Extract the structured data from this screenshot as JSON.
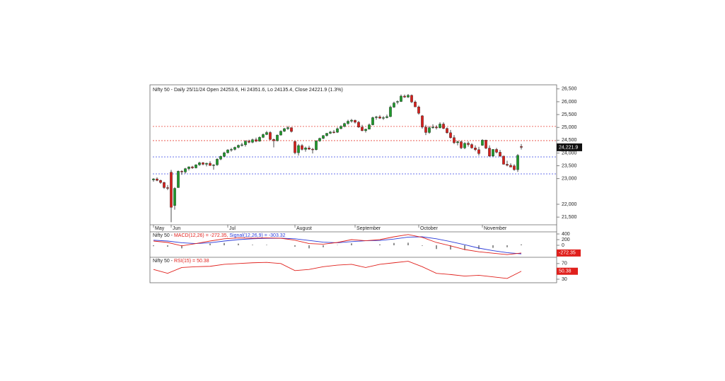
{
  "chart_data": {
    "type": "candlestick",
    "title": "Nifty 50 - Daily 25/11/24 Open 24253.6, Hi 24351.6, Lo 24135.4, Close 24221.9 (1.3%)",
    "up_color": "#1f9a2c",
    "down_color": "#d8201c",
    "ylim": [
      21200,
      26660
    ],
    "yticks": [
      {
        "value": 26500,
        "label": "26,500"
      },
      {
        "value": 26000,
        "label": "26,000"
      },
      {
        "value": 25500,
        "label": "25,500"
      },
      {
        "value": 25000,
        "label": "25,000"
      },
      {
        "value": 24500,
        "label": "24,500"
      },
      {
        "value": 24000,
        "label": "24,000"
      },
      {
        "value": 23500,
        "label": "23,500"
      },
      {
        "value": 23000,
        "label": "23,000"
      },
      {
        "value": 22000,
        "label": "22,000"
      },
      {
        "value": 21500,
        "label": "21,500"
      }
    ],
    "xticks": [
      {
        "value": 0,
        "label": "May"
      },
      {
        "value": 5,
        "label": "Jun"
      },
      {
        "value": 21,
        "label": "Jul"
      },
      {
        "value": 40,
        "label": "August"
      },
      {
        "value": 57,
        "label": "September"
      },
      {
        "value": 75,
        "label": "October"
      },
      {
        "value": 93,
        "label": "November"
      }
    ],
    "last_label": "24,221.9",
    "levels": [
      {
        "value": 25036,
        "color": "#e8433a"
      },
      {
        "value": 24483,
        "color": "#e8433a"
      },
      {
        "value": 23848,
        "color": "#3a46e8"
      },
      {
        "value": 23185,
        "color": "#3a46e8"
      }
    ],
    "candles": [
      [
        22950,
        23020,
        22880,
        22990
      ],
      [
        22990,
        23050,
        22900,
        22930
      ],
      [
        22930,
        22960,
        22800,
        22850
      ],
      [
        22850,
        22880,
        22600,
        22650
      ],
      [
        22650,
        22750,
        22550,
        22620
      ],
      [
        23250,
        23340,
        21300,
        21880
      ],
      [
        21950,
        22670,
        21790,
        22620
      ],
      [
        22650,
        23320,
        22640,
        23290
      ],
      [
        23290,
        23330,
        23150,
        23260
      ],
      [
        23260,
        23420,
        23200,
        23390
      ],
      [
        23390,
        23480,
        23320,
        23460
      ],
      [
        23460,
        23500,
        23380,
        23420
      ],
      [
        23420,
        23560,
        23400,
        23540
      ],
      [
        23540,
        23660,
        23500,
        23620
      ],
      [
        23620,
        23650,
        23520,
        23560
      ],
      [
        23560,
        23620,
        23480,
        23600
      ],
      [
        23600,
        23680,
        23540,
        23510
      ],
      [
        23510,
        23560,
        23350,
        23540
      ],
      [
        23540,
        23800,
        23500,
        23760
      ],
      [
        23760,
        23900,
        23720,
        23870
      ],
      [
        23870,
        24050,
        23840,
        24010
      ],
      [
        24010,
        24150,
        23980,
        24120
      ],
      [
        24120,
        24200,
        24050,
        24140
      ],
      [
        24140,
        24250,
        24100,
        24220
      ],
      [
        24220,
        24330,
        24180,
        24300
      ],
      [
        24300,
        24400,
        24250,
        24320
      ],
      [
        24320,
        24500,
        24250,
        24460
      ],
      [
        24460,
        24520,
        24380,
        24420
      ],
      [
        24420,
        24560,
        24380,
        24520
      ],
      [
        24520,
        24600,
        24420,
        24460
      ],
      [
        24460,
        24650,
        24440,
        24610
      ],
      [
        24610,
        24760,
        24580,
        24720
      ],
      [
        24720,
        24860,
        24700,
        24800
      ],
      [
        24800,
        24850,
        24500,
        24530
      ],
      [
        24530,
        24560,
        24220,
        24480
      ],
      [
        24480,
        24720,
        24450,
        24700
      ],
      [
        24700,
        24880,
        24680,
        24850
      ],
      [
        24850,
        24980,
        24820,
        24950
      ],
      [
        24950,
        25050,
        24900,
        24990
      ],
      [
        24990,
        25000,
        24800,
        24840
      ],
      [
        24450,
        24480,
        23950,
        24010
      ],
      [
        24010,
        24350,
        23900,
        24290
      ],
      [
        24290,
        24350,
        24100,
        24140
      ],
      [
        24140,
        24250,
        24050,
        24200
      ],
      [
        24200,
        24280,
        24120,
        24150
      ],
      [
        24150,
        24200,
        23980,
        24130
      ],
      [
        24130,
        24500,
        24100,
        24470
      ],
      [
        24470,
        24600,
        24440,
        24570
      ],
      [
        24570,
        24700,
        24540,
        24680
      ],
      [
        24680,
        24780,
        24640,
        24770
      ],
      [
        24770,
        24860,
        24740,
        24820
      ],
      [
        24820,
        24900,
        24760,
        24810
      ],
      [
        24810,
        25000,
        24780,
        24950
      ],
      [
        24950,
        25080,
        24930,
        25040
      ],
      [
        25040,
        25180,
        25000,
        25150
      ],
      [
        25150,
        25300,
        25100,
        25240
      ],
      [
        25240,
        25330,
        25180,
        25280
      ],
      [
        25280,
        25300,
        25150,
        25200
      ],
      [
        25200,
        25250,
        24980,
        25010
      ],
      [
        25010,
        25100,
        24850,
        24870
      ],
      [
        24870,
        24950,
        24800,
        24930
      ],
      [
        24930,
        25150,
        24920,
        25100
      ],
      [
        25100,
        25420,
        25080,
        25380
      ],
      [
        25380,
        25450,
        25300,
        25410
      ],
      [
        25410,
        25480,
        25330,
        25360
      ],
      [
        25360,
        25440,
        25290,
        25380
      ],
      [
        25380,
        25500,
        25350,
        25420
      ],
      [
        25420,
        25850,
        25400,
        25790
      ],
      [
        25790,
        26000,
        25760,
        25950
      ],
      [
        26000,
        26050,
        25900,
        26010
      ],
      [
        26010,
        26280,
        25990,
        26220
      ],
      [
        26220,
        26280,
        26150,
        26180
      ],
      [
        26180,
        26300,
        26150,
        26250
      ],
      [
        26250,
        26280,
        25950,
        25990
      ],
      [
        25990,
        26050,
        25800,
        25800
      ],
      [
        25800,
        25850,
        25500,
        25550
      ],
      [
        25450,
        25480,
        24950,
        25010
      ],
      [
        25010,
        25100,
        24700,
        24800
      ],
      [
        24800,
        25050,
        24750,
        24990
      ],
      [
        24990,
        25120,
        24950,
        25010
      ],
      [
        25010,
        25080,
        24920,
        24980
      ],
      [
        24980,
        25200,
        24960,
        25130
      ],
      [
        25130,
        25200,
        24930,
        24960
      ],
      [
        24960,
        25000,
        24750,
        24790
      ],
      [
        24790,
        24900,
        24560,
        24600
      ],
      [
        24600,
        24700,
        24350,
        24400
      ],
      [
        24400,
        24480,
        24300,
        24440
      ],
      [
        24440,
        24480,
        24150,
        24200
      ],
      [
        24200,
        24420,
        24150,
        24380
      ],
      [
        24380,
        24450,
        24250,
        24330
      ],
      [
        24330,
        24380,
        24170,
        24200
      ],
      [
        24200,
        24300,
        24070,
        24130
      ],
      [
        24130,
        24240,
        23900,
        23980
      ],
      [
        24300,
        24540,
        24280,
        24500
      ],
      [
        24500,
        24520,
        24150,
        24190
      ],
      [
        24190,
        24300,
        23850,
        23880
      ],
      [
        23880,
        24150,
        23850,
        24140
      ],
      [
        24140,
        24200,
        23990,
        24030
      ],
      [
        24030,
        24120,
        23850,
        23880
      ],
      [
        23880,
        23890,
        23550,
        23560
      ],
      [
        23560,
        23700,
        23480,
        23520
      ],
      [
        23520,
        23600,
        23450,
        23450
      ],
      [
        23500,
        23560,
        23310,
        23350
      ],
      [
        23350,
        23960,
        23260,
        23907
      ],
      [
        24253.6,
        24351.6,
        24135.4,
        24221.9
      ]
    ],
    "macd": {
      "prefix": "Nifty 50 -",
      "macd_name": "MACD(12,26) = -272.35,",
      "signal_name": "Signal(12,26,9) = -303.32",
      "macd_color": "#e0201c",
      "signal_color": "#2a3ad8",
      "last_label": "-272.35",
      "ylim": [
        -425,
        475
      ],
      "yticks": [
        400,
        200,
        0
      ],
      "x": [
        0,
        4,
        8,
        12,
        16,
        20,
        24,
        28,
        32,
        36,
        40,
        44,
        48,
        52,
        56,
        60,
        64,
        68,
        72,
        76,
        80,
        84,
        88,
        92,
        96,
        100,
        104
      ],
      "macd": [
        150,
        100,
        -20,
        60,
        150,
        230,
        260,
        250,
        260,
        250,
        180,
        60,
        40,
        100,
        200,
        160,
        200,
        300,
        380,
        280,
        100,
        -20,
        -150,
        -230,
        -280,
        -330,
        -272.35
      ],
      "signal": [
        180,
        150,
        90,
        60,
        90,
        150,
        200,
        230,
        245,
        250,
        230,
        170,
        110,
        90,
        130,
        160,
        170,
        220,
        290,
        300,
        230,
        130,
        20,
        -100,
        -190,
        -260,
        -303.32
      ],
      "histogram": [
        -30,
        -50,
        -110,
        0,
        60,
        80,
        60,
        20,
        15,
        0,
        -50,
        -110,
        -70,
        10,
        70,
        0,
        30,
        80,
        90,
        -20,
        -130,
        -150,
        -170,
        -130,
        -90,
        -70,
        31
      ]
    },
    "rsi": {
      "prefix": "Nifty 50 -",
      "name": "RSI(15) = 50.38",
      "color": "#e0201c",
      "last_label": "50.38",
      "ylim": [
        21,
        86
      ],
      "yticks": [
        70,
        30
      ],
      "x": [
        0,
        4,
        8,
        12,
        16,
        20,
        24,
        28,
        32,
        36,
        40,
        44,
        48,
        52,
        56,
        60,
        64,
        68,
        72,
        76,
        80,
        84,
        88,
        92,
        96,
        100,
        104
      ],
      "values": [
        55,
        45,
        60,
        62,
        63,
        68,
        70,
        72,
        73,
        70,
        52,
        55,
        62,
        66,
        68,
        60,
        68,
        72,
        76,
        62,
        45,
        42,
        38,
        40,
        36,
        32,
        50.38
      ]
    }
  }
}
